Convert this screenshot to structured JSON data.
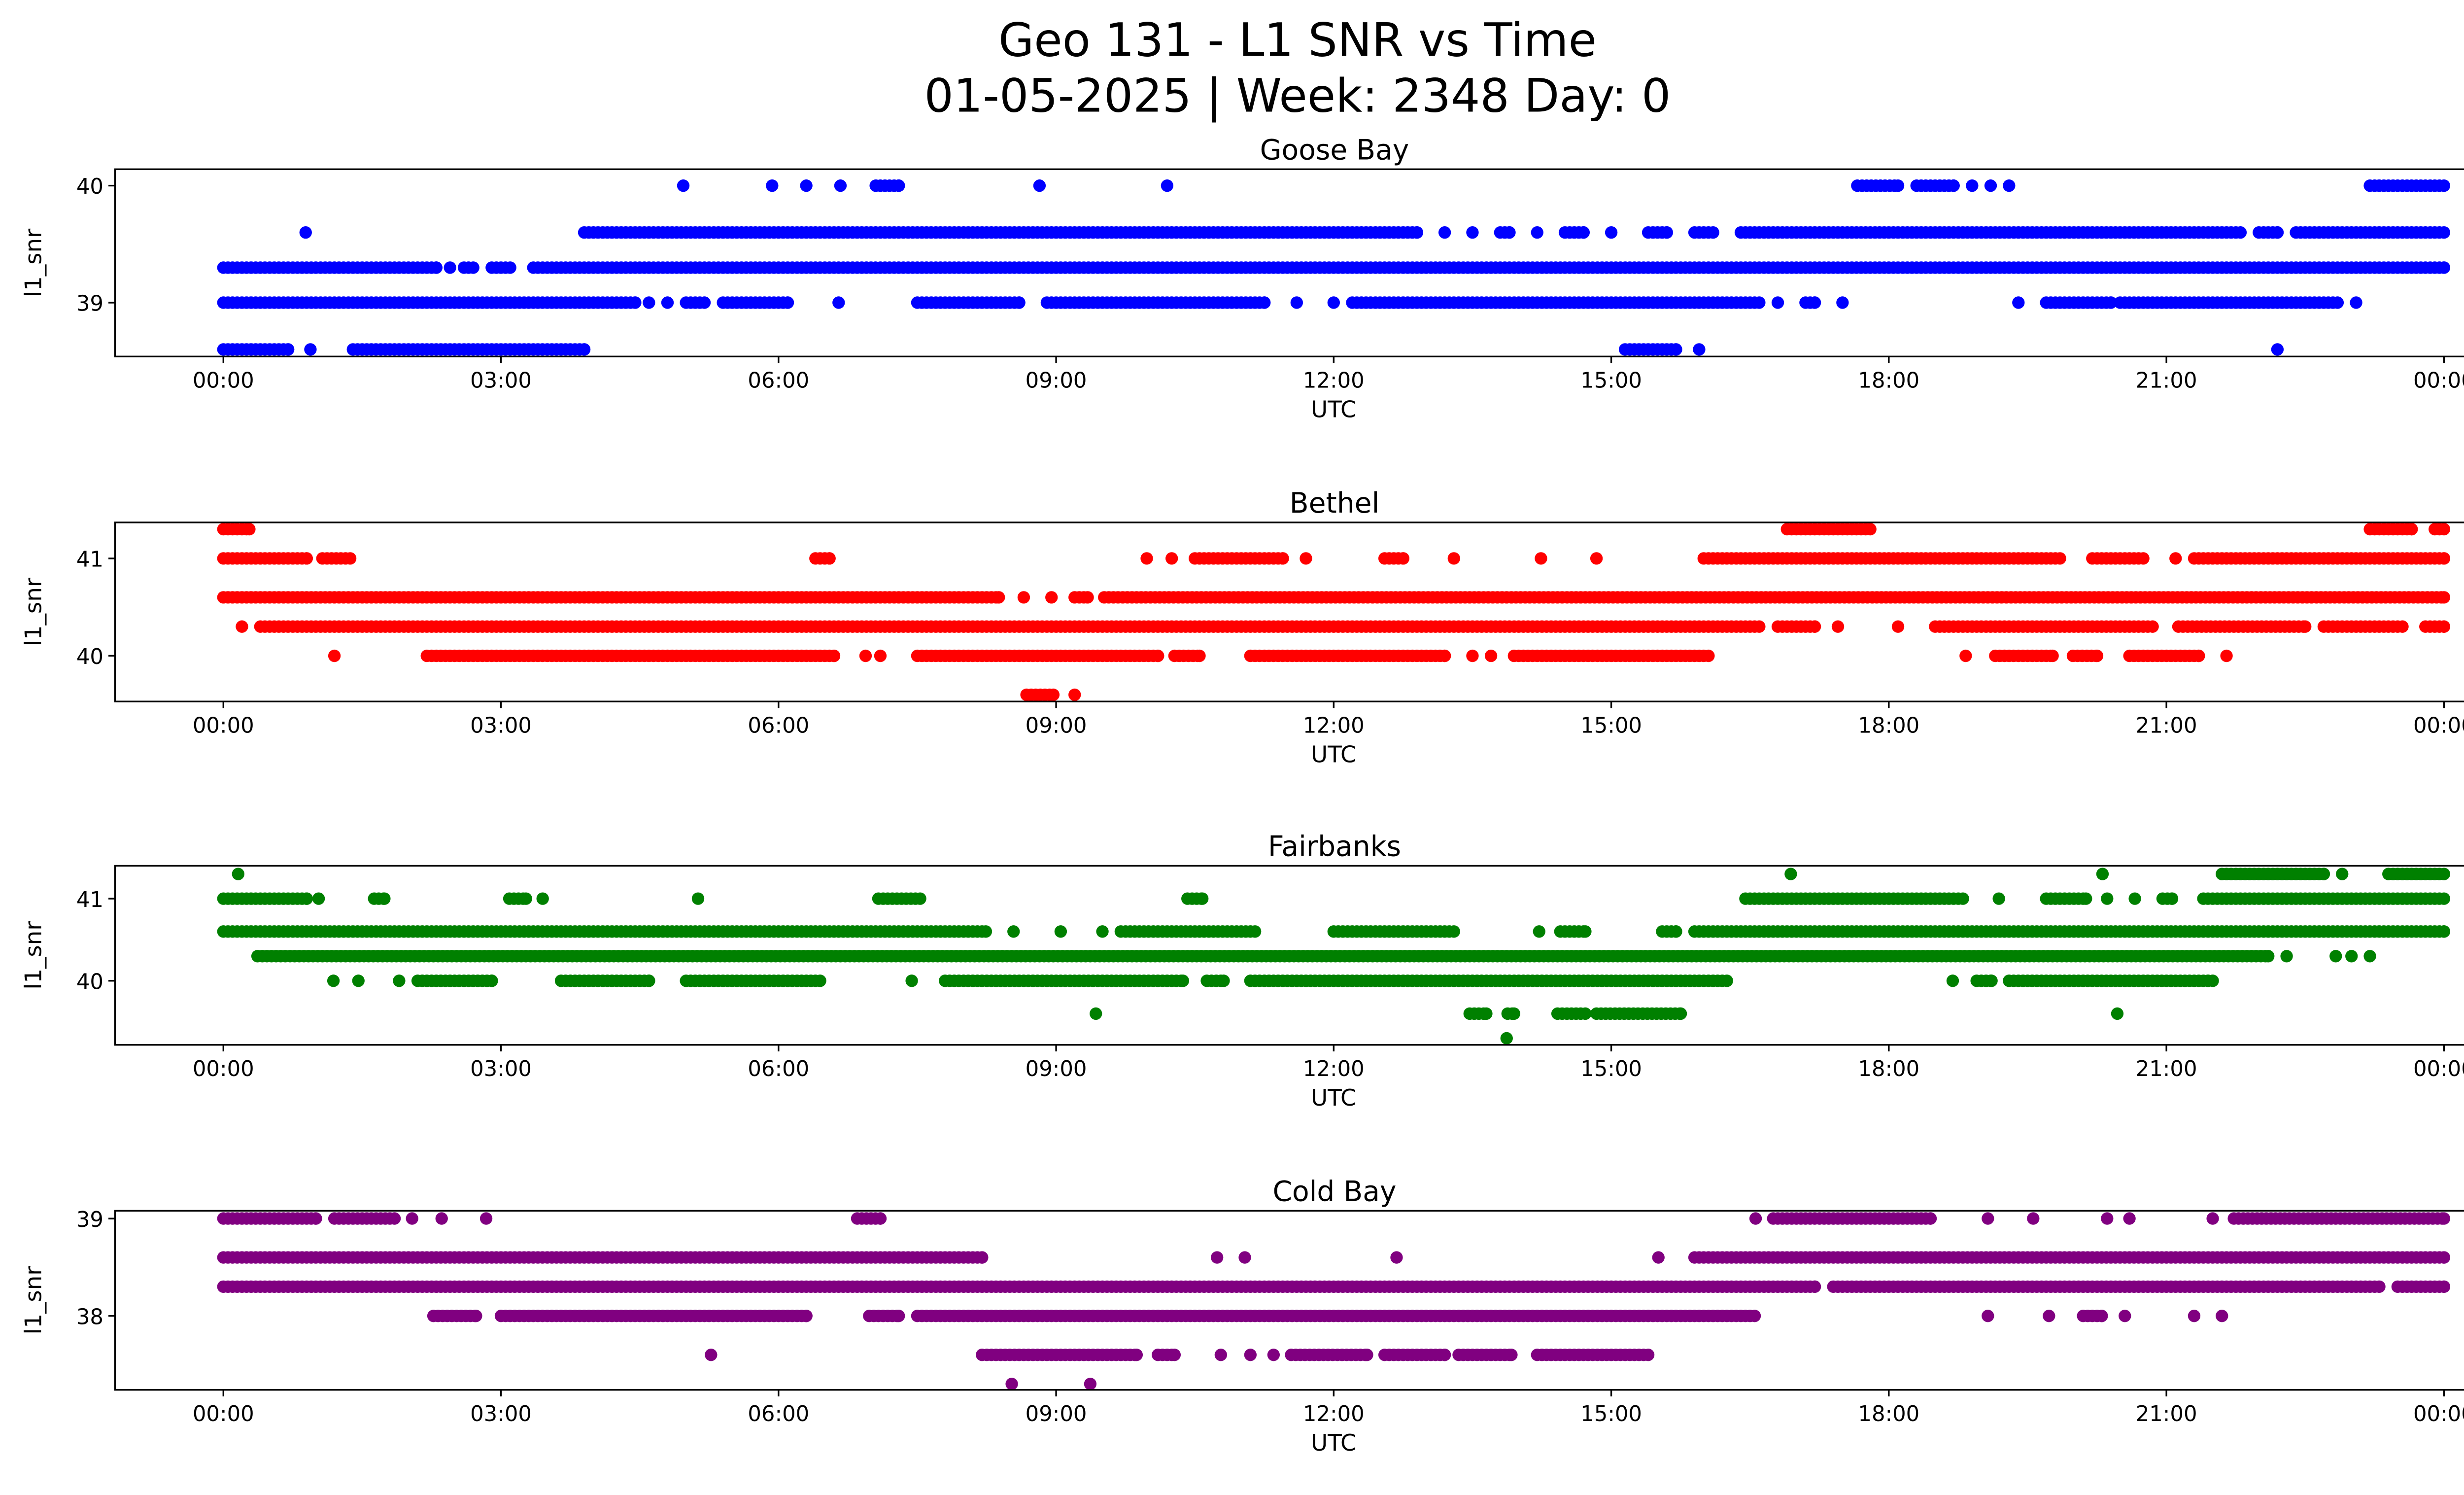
{
  "chart_data": {
    "type": "scatter",
    "title": "Geo 131 - L1 SNR vs Time",
    "subtitle": "01-05-2025 | Week: 2348 Day: 0",
    "x_tick_labels": [
      "00:00",
      "03:00",
      "06:00",
      "09:00",
      "12:00",
      "15:00",
      "18:00",
      "21:00",
      "00:00"
    ],
    "x_ticks_hours": [
      0,
      3,
      6,
      9,
      12,
      15,
      18,
      21,
      24
    ],
    "xlabel": "UTC",
    "ylabel": "l1_snr",
    "sample_step_hours": 0.05,
    "subplots": [
      {
        "title": "Goose Bay",
        "color": "#0000ff",
        "ylim": [
          38.54,
          40.14
        ],
        "yticks": [
          39,
          40
        ],
        "levels": [
          {
            "snr": 40.0,
            "runs": [
              [
                4.97,
                4.97
              ],
              [
                5.93,
                5.93
              ],
              [
                6.3,
                6.3
              ],
              [
                6.67,
                6.67
              ],
              [
                7.05,
                7.3
              ],
              [
                8.82,
                8.82
              ],
              [
                10.2,
                10.2
              ],
              [
                17.66,
                18.1
              ],
              [
                18.3,
                18.7
              ],
              [
                18.9,
                18.9
              ],
              [
                19.1,
                19.1
              ],
              [
                19.3,
                19.3
              ],
              [
                23.2,
                24
              ]
            ]
          },
          {
            "snr": 39.6,
            "runs": [
              [
                0.89,
                0.89
              ],
              [
                3.9,
                12.9
              ],
              [
                13.2,
                13.2
              ],
              [
                13.5,
                13.5
              ],
              [
                13.8,
                13.9
              ],
              [
                14.2,
                14.2
              ],
              [
                14.5,
                14.7
              ],
              [
                15.0,
                15.0
              ],
              [
                15.4,
                15.6
              ],
              [
                15.9,
                16.1
              ],
              [
                16.4,
                21.8
              ],
              [
                22.0,
                22.2
              ],
              [
                22.4,
                24
              ]
            ]
          },
          {
            "snr": 39.3,
            "runs": [
              [
                0,
                2.3
              ],
              [
                2.45,
                2.45
              ],
              [
                2.6,
                2.7
              ],
              [
                2.9,
                3.1
              ],
              [
                3.35,
                24
              ]
            ]
          },
          {
            "snr": 39.0,
            "runs": [
              [
                0,
                4.45
              ],
              [
                4.6,
                4.6
              ],
              [
                4.8,
                4.8
              ],
              [
                5.0,
                5.2
              ],
              [
                5.4,
                6.1
              ],
              [
                6.65,
                6.65
              ],
              [
                7.5,
                8.6
              ],
              [
                8.9,
                11.25
              ],
              [
                11.6,
                11.6
              ],
              [
                12.0,
                12.0
              ],
              [
                12.2,
                16.6
              ],
              [
                16.8,
                16.8
              ],
              [
                17.1,
                17.2
              ],
              [
                17.5,
                17.5
              ],
              [
                19.4,
                19.4
              ],
              [
                19.7,
                20.4
              ],
              [
                20.5,
                22.85
              ],
              [
                23.05,
                23.05
              ]
            ]
          },
          {
            "snr": 38.6,
            "runs": [
              [
                0,
                0.7
              ],
              [
                0.94,
                0.94
              ],
              [
                1.4,
                3.9
              ],
              [
                15.15,
                15.7
              ],
              [
                15.95,
                15.95
              ],
              [
                22.2,
                22.2
              ]
            ]
          }
        ]
      },
      {
        "title": "Bethel",
        "color": "#ff0000",
        "ylim": [
          39.53,
          41.37
        ],
        "yticks": [
          40,
          41
        ],
        "levels": [
          {
            "snr": 41.3,
            "runs": [
              [
                0,
                0.28
              ],
              [
                16.9,
                17.8
              ],
              [
                23.2,
                23.65
              ],
              [
                23.9,
                24
              ]
            ]
          },
          {
            "snr": 41.0,
            "runs": [
              [
                0,
                0.9
              ],
              [
                1.07,
                1.37
              ],
              [
                6.4,
                6.55
              ],
              [
                9.98,
                9.98
              ],
              [
                10.25,
                10.25
              ],
              [
                10.5,
                11.45
              ],
              [
                11.7,
                11.7
              ],
              [
                12.55,
                12.75
              ],
              [
                13.3,
                13.3
              ],
              [
                14.24,
                14.24
              ],
              [
                14.84,
                14.84
              ],
              [
                16.0,
                19.85
              ],
              [
                20.2,
                20.75
              ],
              [
                21.1,
                21.1
              ],
              [
                21.3,
                24
              ]
            ]
          },
          {
            "snr": 40.6,
            "runs": [
              [
                0,
                8.38
              ],
              [
                8.65,
                8.65
              ],
              [
                8.95,
                8.95
              ],
              [
                9.2,
                9.34
              ],
              [
                9.52,
                24
              ]
            ]
          },
          {
            "snr": 40.3,
            "runs": [
              [
                0.2,
                0.2
              ],
              [
                0.4,
                16.6
              ],
              [
                16.8,
                17.2
              ],
              [
                17.45,
                17.45
              ],
              [
                18.1,
                18.1
              ],
              [
                18.5,
                20.85
              ],
              [
                21.13,
                22.5
              ],
              [
                22.7,
                23.55
              ],
              [
                23.8,
                24
              ]
            ]
          },
          {
            "snr": 40.0,
            "runs": [
              [
                1.2,
                1.2
              ],
              [
                2.2,
                6.6
              ],
              [
                6.94,
                6.94
              ],
              [
                7.1,
                7.1
              ],
              [
                7.5,
                10.1
              ],
              [
                10.28,
                10.55
              ],
              [
                11.1,
                13.2
              ],
              [
                13.5,
                13.5
              ],
              [
                13.7,
                13.7
              ],
              [
                13.95,
                16.05
              ],
              [
                18.83,
                18.83
              ],
              [
                19.15,
                19.77
              ],
              [
                19.99,
                20.25
              ],
              [
                20.6,
                21.35
              ],
              [
                21.65,
                21.65
              ]
            ]
          },
          {
            "snr": 39.6,
            "runs": [
              [
                8.68,
                8.97
              ],
              [
                9.2,
                9.2
              ]
            ]
          }
        ]
      },
      {
        "title": "Fairbanks",
        "color": "#008000",
        "ylim": [
          39.22,
          41.4
        ],
        "yticks": [
          40,
          41
        ],
        "levels": [
          {
            "snr": 41.3,
            "runs": [
              [
                0.16,
                0.16
              ],
              [
                16.94,
                16.94
              ],
              [
                20.31,
                20.31
              ],
              [
                21.6,
                22.7
              ],
              [
                22.9,
                22.9
              ],
              [
                23.4,
                24
              ]
            ]
          },
          {
            "snr": 41.0,
            "runs": [
              [
                0,
                0.9
              ],
              [
                1.03,
                1.03
              ],
              [
                1.63,
                1.74
              ],
              [
                3.09,
                3.27
              ],
              [
                3.45,
                3.45
              ],
              [
                5.13,
                5.13
              ],
              [
                7.08,
                7.53
              ],
              [
                10.42,
                10.58
              ],
              [
                16.45,
                18.8
              ],
              [
                19.19,
                19.19
              ],
              [
                19.7,
                20.13
              ],
              [
                20.36,
                20.36
              ],
              [
                20.66,
                20.66
              ],
              [
                20.96,
                21.06
              ],
              [
                21.4,
                24
              ]
            ]
          },
          {
            "snr": 40.6,
            "runs": [
              [
                0,
                8.24
              ],
              [
                8.54,
                8.54
              ],
              [
                9.05,
                9.05
              ],
              [
                9.5,
                9.5
              ],
              [
                9.7,
                11.15
              ],
              [
                12.0,
                13.3
              ],
              [
                14.22,
                14.22
              ],
              [
                14.45,
                14.72
              ],
              [
                15.55,
                15.7
              ],
              [
                15.9,
                24
              ]
            ]
          },
          {
            "snr": 40.3,
            "runs": [
              [
                0.37,
                22.1
              ],
              [
                22.3,
                22.3
              ],
              [
                22.83,
                22.83
              ],
              [
                23.0,
                23.0
              ],
              [
                23.2,
                23.2
              ]
            ]
          },
          {
            "snr": 40.0,
            "runs": [
              [
                1.19,
                1.19
              ],
              [
                1.46,
                1.46
              ],
              [
                1.9,
                1.9
              ],
              [
                2.1,
                2.9
              ],
              [
                3.65,
                4.6
              ],
              [
                5.0,
                6.45
              ],
              [
                7.44,
                7.44
              ],
              [
                7.8,
                10.37
              ],
              [
                10.63,
                10.81
              ],
              [
                11.1,
                16.25
              ],
              [
                18.69,
                18.69
              ],
              [
                18.95,
                19.11
              ],
              [
                19.3,
                21.45
              ],
              [
                21.5,
                21.5
              ]
            ]
          },
          {
            "snr": 39.6,
            "runs": [
              [
                9.43,
                9.43
              ],
              [
                13.47,
                13.65
              ],
              [
                13.88,
                13.95
              ],
              [
                14.42,
                14.72
              ],
              [
                14.84,
                15.75
              ],
              [
                20.47,
                20.47
              ]
            ]
          },
          {
            "snr": 39.3,
            "runs": [
              [
                13.87,
                13.87
              ]
            ]
          }
        ]
      },
      {
        "title": "Cold Bay",
        "color": "#800080",
        "ylim": [
          37.24,
          39.08
        ],
        "yticks": [
          38,
          39
        ],
        "levels": [
          {
            "snr": 39.0,
            "runs": [
              [
                0,
                1.0
              ],
              [
                1.2,
                1.85
              ],
              [
                2.04,
                2.04
              ],
              [
                2.36,
                2.36
              ],
              [
                2.84,
                2.84
              ],
              [
                6.85,
                7.1
              ],
              [
                16.56,
                16.56
              ],
              [
                16.75,
                18.45
              ],
              [
                19.07,
                19.07
              ],
              [
                19.56,
                19.56
              ],
              [
                20.36,
                20.36
              ],
              [
                20.6,
                20.6
              ],
              [
                21.5,
                21.5
              ],
              [
                21.73,
                24
              ]
            ]
          },
          {
            "snr": 38.6,
            "runs": [
              [
                0,
                8.2
              ],
              [
                10.74,
                10.74
              ],
              [
                11.04,
                11.04
              ],
              [
                12.68,
                12.68
              ],
              [
                15.51,
                15.51
              ],
              [
                15.9,
                24
              ]
            ]
          },
          {
            "snr": 38.3,
            "runs": [
              [
                0,
                17.2
              ],
              [
                17.4,
                23.3
              ],
              [
                23.5,
                24
              ]
            ]
          },
          {
            "snr": 38.0,
            "runs": [
              [
                2.27,
                2.73
              ],
              [
                3.0,
                6.3
              ],
              [
                6.98,
                7.3
              ],
              [
                7.5,
                16.55
              ],
              [
                19.07,
                19.07
              ],
              [
                19.73,
                19.73
              ],
              [
                20.1,
                20.3
              ],
              [
                20.55,
                20.55
              ],
              [
                21.3,
                21.3
              ],
              [
                21.6,
                21.6
              ]
            ]
          },
          {
            "snr": 37.6,
            "runs": [
              [
                5.27,
                5.27
              ],
              [
                8.2,
                9.87
              ],
              [
                10.1,
                10.28
              ],
              [
                10.78,
                10.78
              ],
              [
                11.1,
                11.1
              ],
              [
                11.35,
                11.35
              ],
              [
                11.54,
                12.36
              ],
              [
                12.55,
                13.2
              ],
              [
                13.35,
                13.92
              ],
              [
                14.2,
                15.4
              ]
            ]
          },
          {
            "snr": 37.3,
            "runs": [
              [
                8.52,
                8.52
              ],
              [
                9.37,
                9.37
              ]
            ]
          }
        ]
      }
    ]
  }
}
